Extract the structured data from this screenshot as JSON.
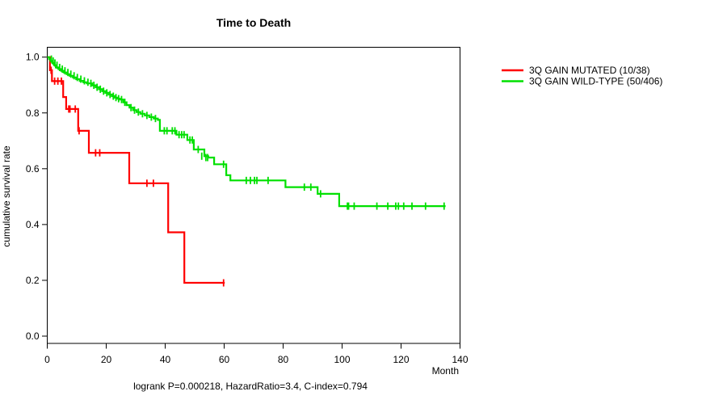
{
  "title": "Time to Death",
  "footer": "logrank P=0.000218, HazardRatio=3.4, C-index=0.794",
  "chart_data": {
    "type": "line",
    "subtype": "kaplan-meier-step",
    "title": "Time to Death",
    "xlabel": "Month",
    "ylabel": "cumulative survival rate",
    "xlim": [
      0,
      140
    ],
    "ylim": [
      0,
      1
    ],
    "xticks": [
      0,
      20,
      40,
      60,
      80,
      100,
      120,
      140
    ],
    "yticks": [
      "0.0",
      "0.2",
      "0.4",
      "0.6",
      "0.8",
      "1.0"
    ],
    "grid": false,
    "legend_position": "right-outside",
    "annotation": "logrank P=0.000218, HazardRatio=3.4, C-index=0.794",
    "axis_color": "#000000",
    "series": [
      {
        "name": "3Q GAIN MUTATED (10/38)",
        "color": "#FF0000",
        "events_total": "10/38",
        "steps": [
          [
            0,
            1.0
          ],
          [
            0.9,
            0.953
          ],
          [
            1.6,
            0.914
          ],
          [
            5.4,
            0.857
          ],
          [
            6.4,
            0.814
          ],
          [
            10.5,
            0.736
          ],
          [
            14.1,
            0.657
          ],
          [
            27.8,
            0.548
          ],
          [
            41,
            0.372
          ],
          [
            46.5,
            0.191
          ]
        ],
        "end_month": 60.2,
        "censors": [
          [
            1.3,
            0.953
          ],
          [
            2.5,
            0.914
          ],
          [
            3.6,
            0.914
          ],
          [
            4.8,
            0.914
          ],
          [
            7.3,
            0.814
          ],
          [
            7.7,
            0.814
          ],
          [
            9.5,
            0.814
          ],
          [
            10.8,
            0.736
          ],
          [
            16.4,
            0.657
          ],
          [
            17.8,
            0.657
          ],
          [
            33.8,
            0.548
          ],
          [
            36,
            0.548
          ],
          [
            59.8,
            0.191
          ]
        ]
      },
      {
        "name": "3Q GAIN WILD-TYPE (50/406)",
        "color": "#00E000",
        "events_total": "50/406",
        "steps": [
          [
            0,
            1.0
          ],
          [
            0.6,
            0.993
          ],
          [
            1.1,
            0.986
          ],
          [
            1.7,
            0.979
          ],
          [
            2.3,
            0.971
          ],
          [
            2.9,
            0.963
          ],
          [
            3.8,
            0.957
          ],
          [
            4.7,
            0.951
          ],
          [
            5.6,
            0.945
          ],
          [
            6.6,
            0.939
          ],
          [
            7.6,
            0.933
          ],
          [
            8.7,
            0.927
          ],
          [
            9.8,
            0.921
          ],
          [
            11,
            0.915
          ],
          [
            12.2,
            0.91
          ],
          [
            13.4,
            0.906
          ],
          [
            15.2,
            0.899
          ],
          [
            16.4,
            0.892
          ],
          [
            17.5,
            0.885
          ],
          [
            18.6,
            0.878
          ],
          [
            19.7,
            0.872
          ],
          [
            20.8,
            0.866
          ],
          [
            21.9,
            0.86
          ],
          [
            22.9,
            0.855
          ],
          [
            23.8,
            0.851
          ],
          [
            24.6,
            0.848
          ],
          [
            25.8,
            0.838
          ],
          [
            26.9,
            0.828
          ],
          [
            27.9,
            0.819
          ],
          [
            29.1,
            0.81
          ],
          [
            30.3,
            0.803
          ],
          [
            31.6,
            0.797
          ],
          [
            33.1,
            0.791
          ],
          [
            34.6,
            0.785
          ],
          [
            36.1,
            0.78
          ],
          [
            37.5,
            0.775
          ],
          [
            38.2,
            0.736
          ],
          [
            43.8,
            0.722
          ],
          [
            47.5,
            0.703
          ],
          [
            49.7,
            0.669
          ],
          [
            53.3,
            0.645
          ],
          [
            54.6,
            0.64
          ],
          [
            56.6,
            0.616
          ],
          [
            60.7,
            0.577
          ],
          [
            62.1,
            0.558
          ],
          [
            80.8,
            0.534
          ],
          [
            91.7,
            0.51
          ],
          [
            99,
            0.466
          ]
        ],
        "end_month": 135.1,
        "censors": [
          [
            1.4,
            0.993
          ],
          [
            2,
            0.986
          ],
          [
            2.6,
            0.979
          ],
          [
            3.3,
            0.971
          ],
          [
            4.2,
            0.963
          ],
          [
            5.1,
            0.957
          ],
          [
            6,
            0.951
          ],
          [
            7,
            0.945
          ],
          [
            8,
            0.939
          ],
          [
            9.1,
            0.933
          ],
          [
            10.2,
            0.927
          ],
          [
            11.4,
            0.921
          ],
          [
            12.6,
            0.915
          ],
          [
            13.8,
            0.91
          ],
          [
            14.8,
            0.906
          ],
          [
            15.8,
            0.899
          ],
          [
            16.9,
            0.892
          ],
          [
            18,
            0.885
          ],
          [
            19.1,
            0.878
          ],
          [
            20.2,
            0.872
          ],
          [
            21.3,
            0.866
          ],
          [
            22.4,
            0.86
          ],
          [
            23.3,
            0.855
          ],
          [
            24.2,
            0.851
          ],
          [
            25.2,
            0.848
          ],
          [
            26.3,
            0.838
          ],
          [
            28.4,
            0.819
          ],
          [
            29.6,
            0.81
          ],
          [
            30.9,
            0.803
          ],
          [
            32.3,
            0.797
          ],
          [
            33.8,
            0.791
          ],
          [
            35.3,
            0.785
          ],
          [
            36.7,
            0.78
          ],
          [
            39.7,
            0.736
          ],
          [
            40.6,
            0.736
          ],
          [
            42.4,
            0.736
          ],
          [
            43.3,
            0.736
          ],
          [
            44.7,
            0.722
          ],
          [
            45.6,
            0.722
          ],
          [
            46.4,
            0.722
          ],
          [
            48.4,
            0.703
          ],
          [
            49.2,
            0.703
          ],
          [
            51.2,
            0.669
          ],
          [
            52.4,
            0.645
          ],
          [
            53.8,
            0.64
          ],
          [
            54.4,
            0.64
          ],
          [
            59.8,
            0.616
          ],
          [
            67.5,
            0.558
          ],
          [
            68.9,
            0.558
          ],
          [
            70.3,
            0.558
          ],
          [
            71.1,
            0.558
          ],
          [
            74.9,
            0.558
          ],
          [
            87.2,
            0.534
          ],
          [
            89.4,
            0.534
          ],
          [
            92.7,
            0.51
          ],
          [
            101.8,
            0.466
          ],
          [
            102.2,
            0.466
          ],
          [
            104.1,
            0.466
          ],
          [
            111.8,
            0.466
          ],
          [
            115.5,
            0.466
          ],
          [
            118.2,
            0.466
          ],
          [
            119.1,
            0.466
          ],
          [
            120.9,
            0.466
          ],
          [
            123.7,
            0.466
          ],
          [
            128.3,
            0.466
          ],
          [
            134.6,
            0.466
          ]
        ]
      }
    ]
  }
}
